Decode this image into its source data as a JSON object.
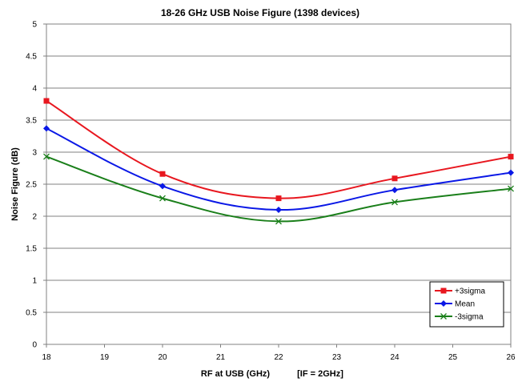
{
  "chart_data": {
    "type": "line",
    "title": "18-26 GHz USB Noise Figure (1398 devices)",
    "xlabel": "RF at USB (GHz)",
    "xlabel_note": "[IF = 2GHz]",
    "ylabel": "Noise Figure (dB)",
    "xlim": [
      18,
      26
    ],
    "ylim": [
      0,
      5
    ],
    "x_ticks": [
      "18",
      "19",
      "20",
      "21",
      "22",
      "23",
      "24",
      "25",
      "26"
    ],
    "y_ticks": [
      "0",
      "0.5",
      "1",
      "1.5",
      "2",
      "2.5",
      "3",
      "3.5",
      "4",
      "4.5",
      "5"
    ],
    "grid": "horizontal",
    "legend_position": "bottom-right",
    "x": [
      18,
      20,
      22,
      24,
      26
    ],
    "series": [
      {
        "name": "+3sigma",
        "values": [
          3.8,
          2.66,
          2.28,
          2.59,
          2.93
        ],
        "color": "#e8171f",
        "marker": "square"
      },
      {
        "name": "Mean",
        "values": [
          3.37,
          2.47,
          2.1,
          2.41,
          2.68
        ],
        "color": "#0a18e6",
        "marker": "diamond"
      },
      {
        "name": "-3sigma",
        "values": [
          2.93,
          2.28,
          1.92,
          2.22,
          2.43
        ],
        "color": "#1a7f1a",
        "marker": "x"
      }
    ]
  }
}
